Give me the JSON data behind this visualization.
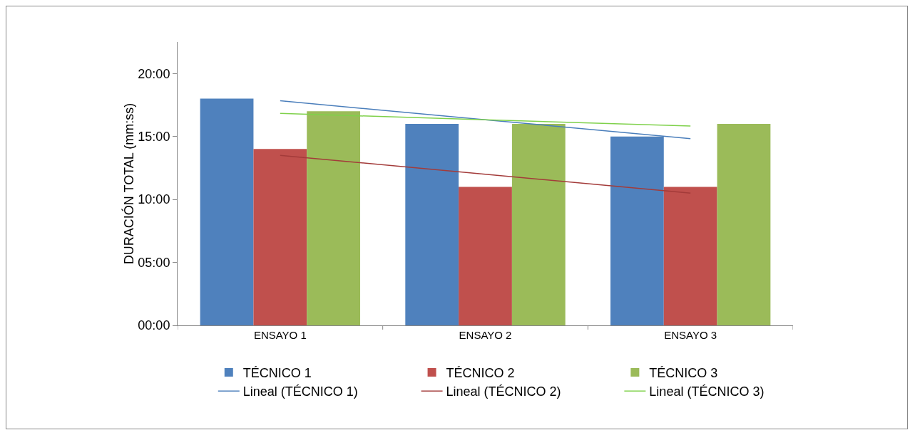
{
  "chart_data": {
    "type": "bar",
    "ylabel": "DURACIÓN TOTAL (mm:ss)",
    "categories": [
      "ENSAYO 1",
      "ENSAYO 2",
      "ENSAYO 3"
    ],
    "series": [
      {
        "name": "TÉCNICO 1",
        "color": "#4f81bd",
        "values": [
          18,
          16,
          15
        ]
      },
      {
        "name": "TÉCNICO 2",
        "color": "#c0504d",
        "values": [
          14,
          11,
          11
        ]
      },
      {
        "name": "TÉCNICO 3",
        "color": "#9bbb59",
        "values": [
          17,
          16,
          16
        ]
      },
      {
        "name": "Lineal (TÉCNICO 1)",
        "type": "line",
        "color": "#4a7ebb",
        "values": [
          17.83,
          16.33,
          14.83
        ]
      },
      {
        "name": "Lineal (TÉCNICO 2)",
        "type": "line",
        "color": "#a33b3a",
        "values": [
          13.5,
          12,
          10.5
        ]
      },
      {
        "name": "Lineal (TÉCNICO 3)",
        "type": "line",
        "color": "#7fd14b",
        "values": [
          16.83,
          16.33,
          15.83
        ]
      }
    ],
    "ylim": [
      0,
      22.5
    ],
    "yticks": [
      {
        "value": 0,
        "label": "00:00"
      },
      {
        "value": 5,
        "label": "05:00"
      },
      {
        "value": 10,
        "label": "10:00"
      },
      {
        "value": 15,
        "label": "15:00"
      },
      {
        "value": 20,
        "label": "20:00"
      }
    ],
    "grid": false,
    "legend": "bottom",
    "marker": "none",
    "line_style": "solid"
  }
}
